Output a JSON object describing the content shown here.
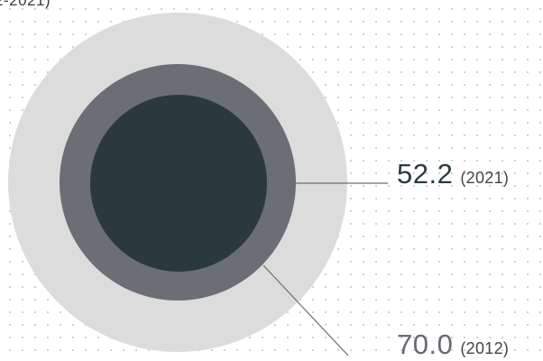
{
  "title_fragment": "2-2021)",
  "colors": {
    "outer_ring": "#dcdcdc",
    "value_2012": "#6b6e75",
    "value_2021": "#2b383d",
    "leader_line": "#6d6d6d",
    "grid_dots": "#c9c9c9"
  },
  "chart_data": {
    "type": "nested-circle",
    "series": [
      {
        "label": "2012",
        "value": 70.0
      },
      {
        "label": "2021",
        "value": 52.2
      }
    ],
    "annotations": [
      {
        "value": "52.2",
        "year": "(2021)"
      },
      {
        "value": "70.0",
        "year": "(2012)"
      }
    ]
  }
}
